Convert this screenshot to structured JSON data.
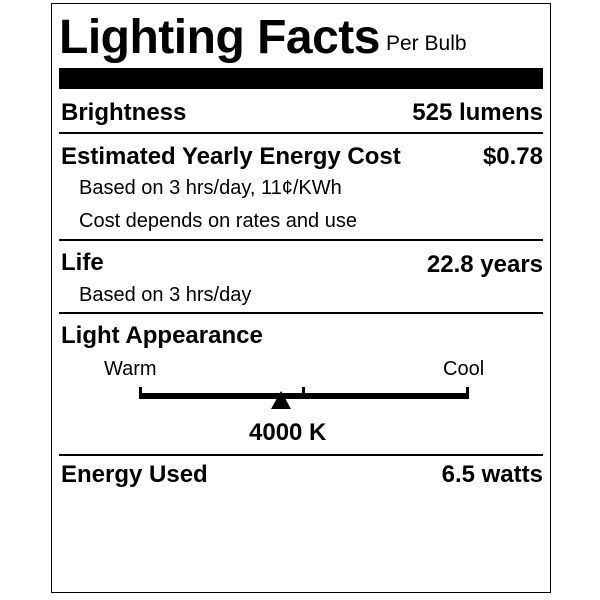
{
  "header": {
    "title": "Lighting Facts",
    "subtitle": "Per Bulb"
  },
  "brightness": {
    "label": "Brightness",
    "value": "525 lumens"
  },
  "energy_cost": {
    "label": "Estimated Yearly Energy Cost",
    "value": "$0.78",
    "note1": "Based on 3 hrs/day, 11¢/KWh",
    "note2": "Cost depends on rates and use"
  },
  "life": {
    "label": "Life",
    "value": "22.8 years",
    "note": "Based on 3 hrs/day"
  },
  "appearance": {
    "label": "Light Appearance",
    "warm_label": "Warm",
    "cool_label": "Cool",
    "value": "4000 K",
    "marker_fraction": 0.43
  },
  "energy_used": {
    "label": "Energy Used",
    "value": "6.5 watts"
  }
}
